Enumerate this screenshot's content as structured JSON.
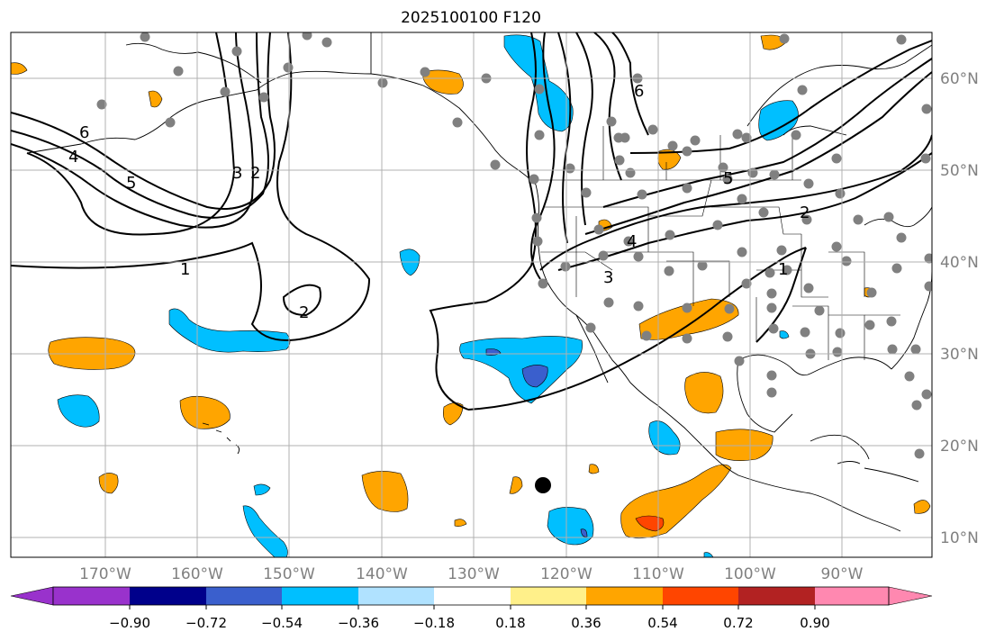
{
  "title": "2025100100 F120",
  "lon_ticks": [
    "170°W",
    "160°W",
    "150°W",
    "140°W",
    "130°W",
    "120°W",
    "110°W",
    "100°W",
    "90°W"
  ],
  "lat_ticks": [
    "60°N",
    "50°N",
    "40°N",
    "30°N",
    "20°N",
    "10°N"
  ],
  "colorbar": {
    "tick_labels": [
      "−0.90",
      "−0.72",
      "−0.54",
      "−0.36",
      "−0.18",
      "0.18",
      "0.36",
      "0.54",
      "0.72",
      "0.90"
    ],
    "colors": [
      "#9932cc",
      "#00008b",
      "#3a5fcd",
      "#00bfff",
      "#b0e2ff",
      "#ffffff",
      "#fff08a",
      "#ffa500",
      "#ff4500",
      "#b22222",
      "#ff88b0"
    ]
  },
  "contour_labels": [
    {
      "text": "6",
      "id": "6a"
    },
    {
      "text": "5",
      "id": "5a"
    },
    {
      "text": "4",
      "id": "4a"
    },
    {
      "text": "3",
      "id": "3a"
    },
    {
      "text": "2",
      "id": "2a"
    },
    {
      "text": "1",
      "id": "1a"
    },
    {
      "text": "2",
      "id": "2b"
    },
    {
      "text": "6",
      "id": "6b"
    },
    {
      "text": "5",
      "id": "5b"
    },
    {
      "text": "4",
      "id": "4b"
    },
    {
      "text": "3",
      "id": "3b"
    },
    {
      "text": "2",
      "id": "2c"
    },
    {
      "text": "1",
      "id": "1b"
    }
  ],
  "colors": {
    "blue": "#00bfff",
    "dark_blue": "#3a5fcd",
    "orange": "#ffa500",
    "red": "#ff4500",
    "yellow": "#fff08a",
    "station": "#808080",
    "grid": "#b0b0b0",
    "tick_label": "#808080"
  }
}
